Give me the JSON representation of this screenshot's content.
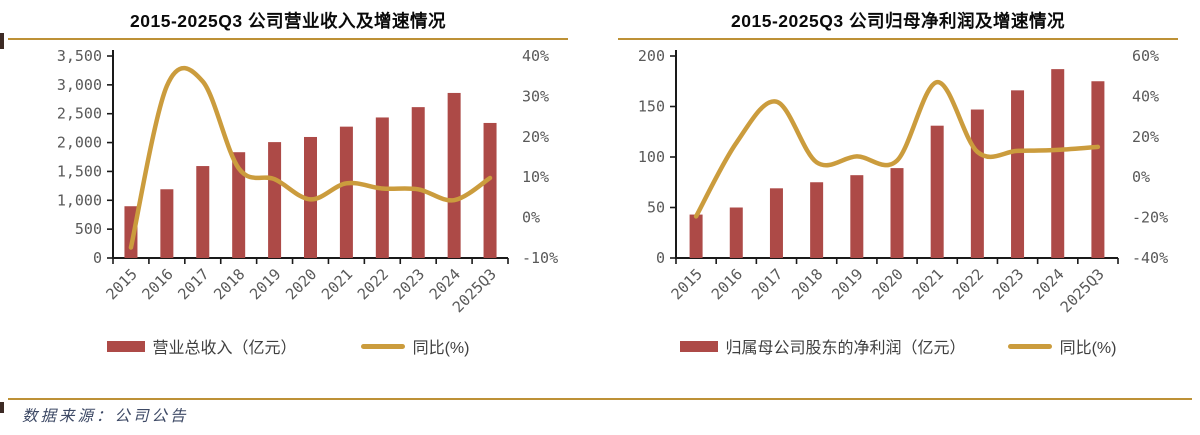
{
  "colors": {
    "bar": "#AD4A47",
    "line": "#CB9C3D",
    "rule": "#BD9136",
    "axis_text": "#595959",
    "title": "#0a0a0a",
    "source": "#3d4965"
  },
  "source_note": {
    "label": "数据来源：公司公告"
  },
  "chart_data": [
    {
      "type": "bar",
      "title": "2015-2025Q3 公司营业收入及增速情况",
      "categories": [
        "2015",
        "2016",
        "2017",
        "2018",
        "2019",
        "2020",
        "2021",
        "2022",
        "2023",
        "2024",
        "2025Q3"
      ],
      "series": [
        {
          "name": "营业总收入（亿元）",
          "type": "bar",
          "axis": "left",
          "values": [
            897,
            1191,
            1593,
            1833,
            2008,
            2097,
            2276,
            2435,
            2614,
            2860,
            2340
          ]
        },
        {
          "name": "同比(%)",
          "type": "line",
          "axis": "right",
          "values": [
            -7.4,
            32.6,
            33.7,
            12.2,
            9.5,
            4.5,
            8.5,
            7.2,
            7.0,
            4.3,
            9.8
          ]
        }
      ],
      "left_axis": {
        "min": 0,
        "max": 3500,
        "step": 500,
        "format": "thousands"
      },
      "right_axis": {
        "min": -10,
        "max": 40,
        "step": 10,
        "suffix": "%"
      },
      "grid": false,
      "legend_position": "bottom",
      "line_smooth": true
    },
    {
      "type": "bar",
      "title": "2015-2025Q3 公司归母净利润及增速情况",
      "categories": [
        "2015",
        "2016",
        "2017",
        "2018",
        "2019",
        "2020",
        "2021",
        "2022",
        "2023",
        "2024",
        "2025Q3"
      ],
      "series": [
        {
          "name": "归属母公司股东的净利润（亿元）",
          "type": "bar",
          "axis": "left",
          "values": [
            43,
            50,
            69,
            75,
            82,
            89,
            131,
            147,
            166,
            187,
            175
          ]
        },
        {
          "name": "同比(%)",
          "type": "line",
          "axis": "right",
          "values": [
            -19.4,
            17.0,
            37.4,
            7.4,
            10.3,
            8.2,
            47.1,
            12.5,
            13.0,
            13.5,
            15.0
          ]
        }
      ],
      "left_axis": {
        "min": 0,
        "max": 200,
        "step": 50,
        "format": "plain"
      },
      "right_axis": {
        "min": -40,
        "max": 60,
        "step": 20,
        "suffix": "%"
      },
      "grid": false,
      "legend_position": "bottom",
      "line_smooth": true
    }
  ]
}
